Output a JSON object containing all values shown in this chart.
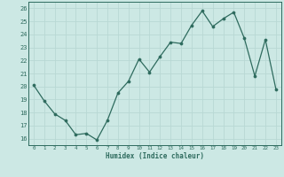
{
  "x": [
    0,
    1,
    2,
    3,
    4,
    5,
    6,
    7,
    8,
    9,
    10,
    11,
    12,
    13,
    14,
    15,
    16,
    17,
    18,
    19,
    20,
    21,
    22,
    23
  ],
  "y": [
    20.1,
    18.9,
    17.9,
    17.4,
    16.3,
    16.4,
    15.9,
    17.4,
    19.5,
    20.4,
    22.1,
    21.1,
    22.3,
    23.4,
    23.3,
    24.7,
    25.8,
    24.6,
    25.2,
    25.7,
    23.7,
    20.8,
    23.6,
    19.8
  ],
  "xlabel": "Humidex (Indice chaleur)",
  "xlim": [
    -0.5,
    23.5
  ],
  "ylim": [
    15.5,
    26.5
  ],
  "yticks": [
    16,
    17,
    18,
    19,
    20,
    21,
    22,
    23,
    24,
    25,
    26
  ],
  "xticks": [
    0,
    1,
    2,
    3,
    4,
    5,
    6,
    7,
    8,
    9,
    10,
    11,
    12,
    13,
    14,
    15,
    16,
    17,
    18,
    19,
    20,
    21,
    22,
    23
  ],
  "line_color": "#2e6b5e",
  "marker_color": "#2e6b5e",
  "bg_color": "#cce8e4",
  "grid_color": "#b8d8d4",
  "tick_color": "#2e6b5e",
  "spine_color": "#2e6b5e",
  "label_color": "#2e6b5e"
}
